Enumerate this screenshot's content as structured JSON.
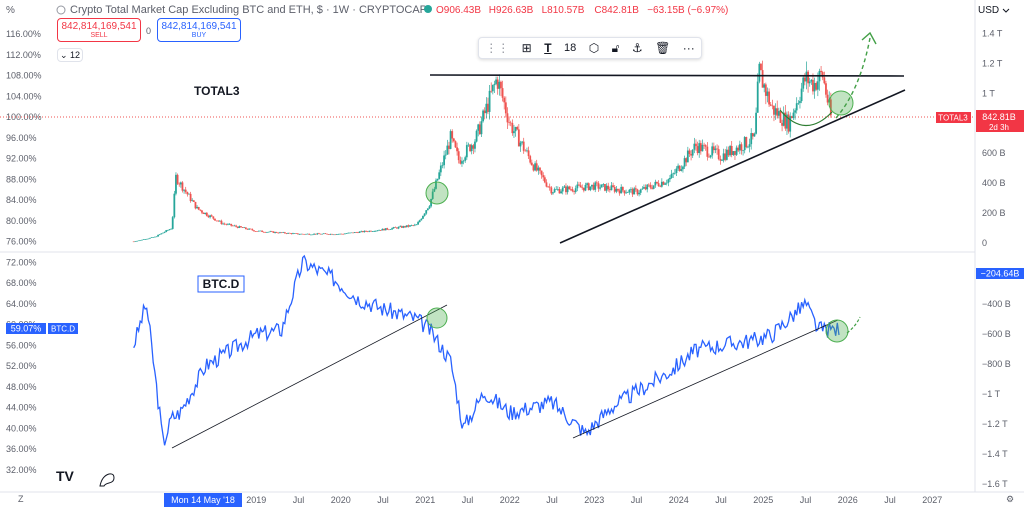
{
  "header": {
    "pct_button": "%",
    "title": "Crypto Total Market Cap Excluding BTC and ETH, $ · 1W · CRYPTOCAP",
    "ohlc": [
      {
        "k": "O",
        "v": "906.43B"
      },
      {
        "k": "H",
        "v": "926.63B"
      },
      {
        "k": "L",
        "v": "810.57B"
      },
      {
        "k": "C",
        "v": "842.81B"
      },
      {
        "k": "",
        "v": "−63.15B (−6.97%)"
      }
    ],
    "currency": "USD",
    "sell_price": "842,814,169,541",
    "sell_label": "SELL",
    "spread": "0",
    "buy_price": "842,814,169,541",
    "buy_label": "BUY",
    "indicator_count": "12"
  },
  "toolbar": {
    "font_size": "18"
  },
  "chart_data": {
    "type": "line",
    "panes": [
      {
        "name": "TOTAL3",
        "series_type": "candlestick",
        "price_label": "842.81B",
        "countdown": "2d 3h",
        "tag": "TOTAL3",
        "right_ticks": [
          "1.4 T",
          "1.2 T",
          "1 T",
          "800 B",
          "600 B",
          "400 B",
          "200 B",
          "0"
        ],
        "right_tick_values": [
          1400,
          1200,
          1000,
          800,
          600,
          400,
          200,
          0
        ],
        "ylim": [
          0,
          1500
        ],
        "x": [
          2017.55,
          2017.8,
          2018.0,
          2018.05,
          2018.3,
          2018.6,
          2019.0,
          2019.5,
          2020.0,
          2020.5,
          2020.9,
          2021.05,
          2021.3,
          2021.4,
          2021.6,
          2021.85,
          2022.0,
          2022.3,
          2022.5,
          2023.0,
          2023.5,
          2023.9,
          2024.2,
          2024.5,
          2024.9,
          2024.95,
          2025.1,
          2025.3,
          2025.5,
          2025.6,
          2025.7,
          2025.8
        ],
        "values": [
          10,
          40,
          100,
          440,
          230,
          130,
          80,
          60,
          60,
          90,
          120,
          260,
          700,
          550,
          700,
          1100,
          800,
          500,
          350,
          380,
          340,
          430,
          650,
          580,
          700,
          1150,
          900,
          800,
          1100,
          1060,
          1130,
          842
        ]
      },
      {
        "name": "BTC.D",
        "series_type": "line",
        "price_label": "59.07%",
        "tag": "BTC.D",
        "left_ticks": [
          "116.00%",
          "112.00%",
          "108.00%",
          "104.00%",
          "100.00%",
          "96.00%",
          "92.00%",
          "88.00%",
          "84.00%",
          "80.00%",
          "76.00%",
          "72.00%",
          "68.00%",
          "64.00%",
          "60.00%",
          "56.00%",
          "52.00%",
          "48.00%",
          "44.00%",
          "40.00%",
          "36.00%",
          "32.00%"
        ],
        "x": [
          2017.55,
          2017.7,
          2017.9,
          2018.0,
          2018.1,
          2018.4,
          2018.7,
          2019.0,
          2019.3,
          2019.55,
          2019.9,
          2020.2,
          2020.5,
          2020.9,
          2021.05,
          2021.3,
          2021.45,
          2021.7,
          2022.0,
          2022.5,
          2022.9,
          2023.2,
          2023.5,
          2023.9,
          2024.2,
          2024.5,
          2024.9,
          2025.1,
          2025.3,
          2025.5,
          2025.65,
          2025.75,
          2025.9
        ],
        "values": [
          56,
          64,
          37,
          42,
          43,
          52,
          55,
          58,
          59,
          72,
          69,
          65,
          63,
          61,
          59,
          53,
          40,
          47,
          43,
          45,
          39,
          44,
          47,
          51,
          55,
          56,
          57,
          58,
          61,
          64,
          59,
          59,
          59
        ]
      }
    ],
    "negative_ticks": [
      "−204.64B",
      "−400 B",
      "−600 B",
      "−800 B",
      "−1 T",
      "−1.2 T",
      "−1.4 T",
      "−1.6 T"
    ],
    "x_ticks": [
      {
        "label": "Mon 14 May '18",
        "year": 2018.37,
        "highlight": true
      },
      {
        "label": "2019",
        "year": 2019.0
      },
      {
        "label": "Jul",
        "year": 2019.5
      },
      {
        "label": "2020",
        "year": 2020.0
      },
      {
        "label": "Jul",
        "year": 2020.5
      },
      {
        "label": "2021",
        "year": 2021.0
      },
      {
        "label": "Jul",
        "year": 2021.5
      },
      {
        "label": "2022",
        "year": 2022.0
      },
      {
        "label": "Jul",
        "year": 2022.5
      },
      {
        "label": "2023",
        "year": 2023.0
      },
      {
        "label": "Jul",
        "year": 2023.5
      },
      {
        "label": "2024",
        "year": 2024.0
      },
      {
        "label": "Jul",
        "year": 2024.5
      },
      {
        "label": "2025",
        "year": 2025.0
      },
      {
        "label": "Jul",
        "year": 2025.5
      },
      {
        "label": "2026",
        "year": 2026.0
      },
      {
        "label": "Jul",
        "year": 2026.5
      },
      {
        "label": "2027",
        "year": 2027.0
      }
    ],
    "colors": {
      "up": "#26a69a",
      "down": "#ef5350",
      "line": "#2962ff",
      "accent": "#f23645"
    }
  }
}
